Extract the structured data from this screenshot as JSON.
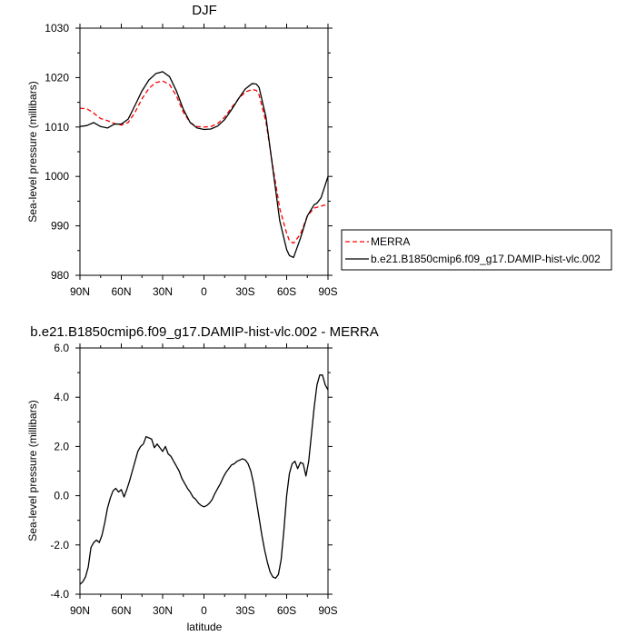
{
  "chart_data": [
    {
      "type": "line",
      "title": "DJF",
      "xlabel": "",
      "ylabel": "Sea-level pressure (millibars)",
      "xlim": [
        90,
        -90
      ],
      "ylim": [
        980,
        1030
      ],
      "x_ticks": [
        90,
        60,
        30,
        0,
        -30,
        -60,
        -90
      ],
      "x_tick_labels": [
        "90N",
        "60N",
        "30N",
        "0",
        "30S",
        "60S",
        "90S"
      ],
      "y_ticks": [
        980,
        990,
        1000,
        1010,
        1020,
        1030
      ],
      "y_tick_labels": [
        "980",
        "990",
        "1000",
        "1010",
        "1020",
        "1030"
      ],
      "grid": false,
      "legend_position": "right",
      "series": [
        {
          "name": "MERRA",
          "color": "#ff0000",
          "dash": "dashed",
          "x": [
            90,
            85,
            80,
            75,
            70,
            65,
            60,
            55,
            50,
            45,
            40,
            35,
            30,
            25,
            20,
            15,
            10,
            5,
            0,
            -5,
            -10,
            -15,
            -20,
            -25,
            -30,
            -35,
            -38,
            -40,
            -45,
            -50,
            -55,
            -60,
            -62,
            -65,
            -70,
            -75,
            -80,
            -85,
            -90
          ],
          "y": [
            1013.8,
            1013.7,
            1012.8,
            1011.7,
            1011.3,
            1010.7,
            1010.4,
            1010.9,
            1013.0,
            1015.7,
            1017.8,
            1019.0,
            1019.3,
            1018.6,
            1016.3,
            1013.0,
            1010.9,
            1010.1,
            1010.0,
            1010.1,
            1010.7,
            1012.0,
            1013.9,
            1015.7,
            1017.1,
            1017.6,
            1017.4,
            1016.5,
            1011.0,
            1002.0,
            993.5,
            988.5,
            987.0,
            986.5,
            988.3,
            992.0,
            993.6,
            994.0,
            994.4
          ]
        },
        {
          "name": "b.e21.B1850cmip6.f09_g17.DAMIP-hist-vlc.002",
          "color": "#000000",
          "dash": "solid",
          "x": [
            90,
            85,
            80,
            75,
            70,
            65,
            60,
            55,
            50,
            45,
            40,
            35,
            30,
            25,
            20,
            15,
            10,
            5,
            0,
            -5,
            -10,
            -15,
            -20,
            -25,
            -30,
            -35,
            -38,
            -40,
            -45,
            -50,
            -55,
            -60,
            -62,
            -65,
            -70,
            -75,
            -80,
            -82,
            -85,
            -90
          ],
          "y": [
            1010.1,
            1010.3,
            1010.9,
            1010.1,
            1009.8,
            1010.6,
            1010.6,
            1011.6,
            1014.4,
            1017.3,
            1019.5,
            1020.8,
            1021.2,
            1020.2,
            1017.3,
            1013.6,
            1010.9,
            1009.8,
            1009.5,
            1009.6,
            1010.2,
            1011.5,
            1013.5,
            1015.7,
            1017.7,
            1018.8,
            1018.7,
            1018.0,
            1012.0,
            1001.5,
            991.0,
            985.2,
            984.0,
            983.6,
            987.5,
            992.0,
            994.3,
            994.6,
            995.7,
            1000.0
          ]
        }
      ]
    },
    {
      "type": "line",
      "title": "b.e21.B1850cmip6.f09_g17.DAMIP-hist-vlc.002 - MERRA",
      "xlabel": "latitude",
      "ylabel": "Sea-level pressure (millibars)",
      "xlim": [
        90,
        -90
      ],
      "ylim": [
        -4,
        6
      ],
      "x_ticks": [
        90,
        60,
        30,
        0,
        -30,
        -60,
        -90
      ],
      "x_tick_labels": [
        "90N",
        "60N",
        "30N",
        "0",
        "30S",
        "60S",
        "90S"
      ],
      "y_ticks": [
        -4,
        -2,
        0,
        2,
        4,
        6
      ],
      "y_tick_labels": [
        "-4.0",
        "-2.0",
        "0.0",
        "2.0",
        "4.0",
        "6.0"
      ],
      "grid": false,
      "series": [
        {
          "color": "#000000",
          "dash": "solid",
          "x": [
            90,
            88,
            86,
            84,
            82,
            80,
            78,
            76,
            74,
            72,
            70,
            68,
            66,
            64,
            62,
            60,
            58,
            56,
            54,
            52,
            50,
            48,
            46,
            44,
            42,
            40,
            38,
            36,
            34,
            32,
            30,
            28,
            26,
            24,
            22,
            20,
            18,
            16,
            14,
            12,
            10,
            8,
            6,
            4,
            2,
            0,
            -2,
            -4,
            -6,
            -8,
            -10,
            -12,
            -14,
            -16,
            -18,
            -20,
            -22,
            -24,
            -26,
            -28,
            -30,
            -32,
            -34,
            -36,
            -38,
            -40,
            -42,
            -44,
            -46,
            -48,
            -50,
            -52,
            -54,
            -56,
            -58,
            -60,
            -62,
            -64,
            -66,
            -68,
            -70,
            -72,
            -74,
            -76,
            -78,
            -80,
            -82,
            -84,
            -86,
            -88,
            -90
          ],
          "y": [
            -3.6,
            -3.5,
            -3.3,
            -2.9,
            -2.1,
            -1.9,
            -1.8,
            -1.9,
            -1.6,
            -1.1,
            -0.5,
            -0.1,
            0.2,
            0.3,
            0.15,
            0.25,
            -0.05,
            0.25,
            0.6,
            1.0,
            1.4,
            1.8,
            2.0,
            2.1,
            2.4,
            2.35,
            2.3,
            1.95,
            2.1,
            1.95,
            1.8,
            2.0,
            1.7,
            1.6,
            1.4,
            1.2,
            1.0,
            0.7,
            0.5,
            0.3,
            0.15,
            -0.05,
            -0.15,
            -0.3,
            -0.4,
            -0.45,
            -0.4,
            -0.3,
            -0.15,
            0.1,
            0.3,
            0.5,
            0.75,
            0.95,
            1.1,
            1.25,
            1.3,
            1.4,
            1.45,
            1.5,
            1.45,
            1.3,
            1.0,
            0.5,
            -0.2,
            -0.9,
            -1.6,
            -2.2,
            -2.7,
            -3.1,
            -3.3,
            -3.35,
            -3.2,
            -2.6,
            -1.4,
            0.0,
            0.9,
            1.3,
            1.4,
            1.1,
            1.35,
            1.3,
            0.8,
            1.4,
            2.5,
            3.6,
            4.5,
            4.9,
            4.9,
            4.5,
            4.3
          ]
        }
      ]
    }
  ]
}
